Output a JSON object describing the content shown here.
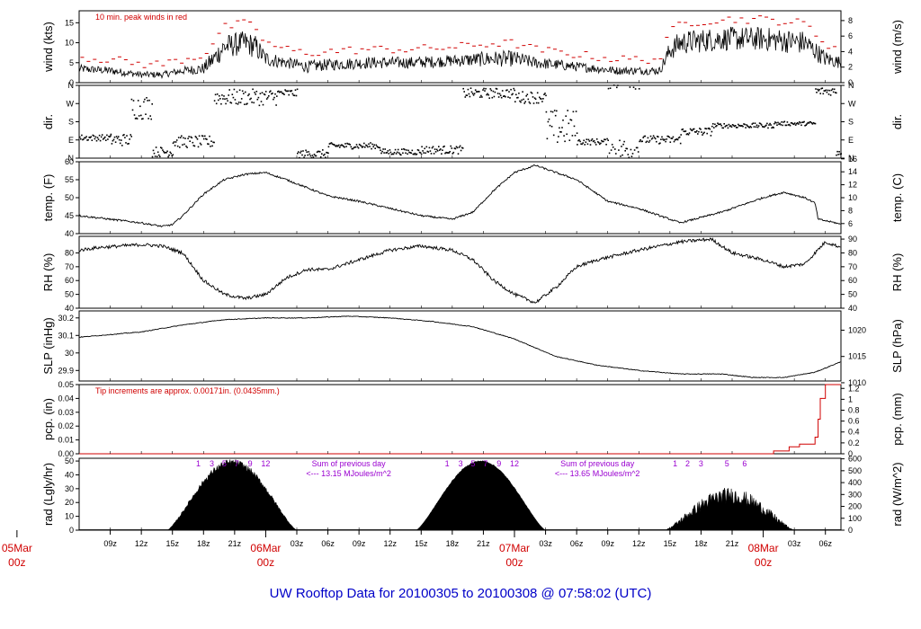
{
  "footer_title": "UW Rooftop Data for 20100305  to  20100308 @ 07:58:02  (UTC)",
  "colors": {
    "text": "#000000",
    "peak": "#d00000",
    "note": "#d00000",
    "rad_note": "#9a00d0",
    "footer": "#0000c8",
    "date": "#d00000"
  },
  "chart_data": {
    "type": "line",
    "x_unit": "hours from 2010-03-05 06z",
    "x_range": [
      0,
      73.5
    ],
    "x_ticks": [
      {
        "t": 3,
        "label": "09z"
      },
      {
        "t": 6,
        "label": "12z"
      },
      {
        "t": 9,
        "label": "15z"
      },
      {
        "t": 12,
        "label": "18z"
      },
      {
        "t": 15,
        "label": "21z"
      },
      {
        "t": 21,
        "label": "03z"
      },
      {
        "t": 24,
        "label": "06z"
      },
      {
        "t": 27,
        "label": "09z"
      },
      {
        "t": 30,
        "label": "12z"
      },
      {
        "t": 33,
        "label": "15z"
      },
      {
        "t": 36,
        "label": "18z"
      },
      {
        "t": 39,
        "label": "21z"
      },
      {
        "t": 45,
        "label": "03z"
      },
      {
        "t": 48,
        "label": "06z"
      },
      {
        "t": 51,
        "label": "09z"
      },
      {
        "t": 54,
        "label": "12z"
      },
      {
        "t": 57,
        "label": "15z"
      },
      {
        "t": 60,
        "label": "18z"
      },
      {
        "t": 63,
        "label": "21z"
      },
      {
        "t": 69,
        "label": "03z"
      },
      {
        "t": 72,
        "label": "06z"
      }
    ],
    "date_marks": [
      {
        "t": -6,
        "date": "05Mar",
        "hour": "00z"
      },
      {
        "t": 18,
        "date": "06Mar",
        "hour": "00z"
      },
      {
        "t": 42,
        "date": "07Mar",
        "hour": "00z"
      },
      {
        "t": 66,
        "date": "08Mar",
        "hour": "00z"
      }
    ],
    "panels": [
      {
        "id": "wind",
        "ylabel": "wind (kts)",
        "ylabel_right": "wind (m/s)",
        "ylim": [
          0,
          18
        ],
        "left_ticks": [
          0,
          5,
          10,
          15
        ],
        "right_ticks": [
          {
            "v": 0,
            "label": "0"
          },
          {
            "v": 3.89,
            "label": "2"
          },
          {
            "v": 7.78,
            "label": "4"
          },
          {
            "v": 11.66,
            "label": "6"
          },
          {
            "v": 15.55,
            "label": "8"
          }
        ],
        "annotation": "10 min. peak winds in red",
        "series": [
          {
            "kind": "noisy_line",
            "x": [
              0,
              3,
              6,
              8,
              10,
              12,
              13,
              14,
              16,
              17,
              18,
              20,
              22,
              24,
              28,
              32,
              36,
              40,
              42,
              44,
              48,
              52,
              56,
              57,
              58,
              62,
              66,
              70,
              72,
              73.5
            ],
            "y": [
              3.5,
              3,
              2,
              2,
              3,
              3.5,
              6,
              9,
              10,
              9,
              6,
              5,
              4,
              4.5,
              5,
              5,
              5.5,
              6,
              6,
              5,
              4,
              3,
              3,
              8,
              10,
              11,
              11,
              10,
              6,
              5
            ],
            "noise": [
              1,
              1,
              0.8,
              0.8,
              1,
              1.5,
              2.5,
              3,
              3,
              3,
              2,
              1.5,
              1.5,
              1.5,
              1.5,
              1.5,
              1.5,
              2,
              2,
              1.5,
              1.2,
              1,
              1,
              2.5,
              3,
              3,
              3,
              3,
              2,
              1.5
            ]
          },
          {
            "kind": "peak_dashes",
            "offset": 3.5
          }
        ]
      },
      {
        "id": "dir",
        "ylabel": "dir.",
        "ylabel_right": "dir.",
        "ylim": [
          0,
          360
        ],
        "left_ticks": [
          {
            "v": 0,
            "label": "N"
          },
          {
            "v": 90,
            "label": "E"
          },
          {
            "v": 180,
            "label": "S"
          },
          {
            "v": 270,
            "label": "W"
          },
          {
            "v": 360,
            "label": "N"
          }
        ],
        "segments": [
          {
            "t0": 0,
            "t1": 3,
            "center": 100,
            "spread": 15
          },
          {
            "t0": 3,
            "t1": 5,
            "center": 90,
            "spread": 30
          },
          {
            "t0": 5,
            "t1": 7,
            "center": 250,
            "spread": 60
          },
          {
            "t0": 7,
            "t1": 9,
            "center": 30,
            "spread": 25
          },
          {
            "t0": 9,
            "t1": 13,
            "center": 80,
            "spread": 30
          },
          {
            "t0": 13,
            "t1": 19,
            "center": 300,
            "spread": 40
          },
          {
            "t0": 19,
            "t1": 21,
            "center": 320,
            "spread": 20
          },
          {
            "t0": 21,
            "t1": 24,
            "center": 20,
            "spread": 20
          },
          {
            "t0": 24,
            "t1": 29,
            "center": 60,
            "spread": 15
          },
          {
            "t0": 29,
            "t1": 33,
            "center": 30,
            "spread": 15
          },
          {
            "t0": 33,
            "t1": 37,
            "center": 40,
            "spread": 20
          },
          {
            "t0": 37,
            "t1": 42,
            "center": 320,
            "spread": 25
          },
          {
            "t0": 42,
            "t1": 45,
            "center": 300,
            "spread": 30
          },
          {
            "t0": 45,
            "t1": 48,
            "center": 150,
            "spread": 90
          },
          {
            "t0": 48,
            "t1": 51,
            "center": 80,
            "spread": 15
          },
          {
            "t0": 51,
            "t1": 54,
            "center": 40,
            "spread": 60
          },
          {
            "t0": 54,
            "t1": 58,
            "center": 90,
            "spread": 20
          },
          {
            "t0": 58,
            "t1": 61,
            "center": 130,
            "spread": 20
          },
          {
            "t0": 61,
            "t1": 67,
            "center": 160,
            "spread": 12
          },
          {
            "t0": 67,
            "t1": 71,
            "center": 170,
            "spread": 10
          },
          {
            "t0": 71,
            "t1": 73,
            "center": 330,
            "spread": 20
          },
          {
            "t0": 73,
            "t1": 73.5,
            "center": 30,
            "spread": 20
          }
        ]
      },
      {
        "id": "temp",
        "ylabel": "temp. (F)",
        "ylabel_right": "temp. (C)",
        "ylim": [
          40,
          60
        ],
        "left_ticks": [
          40,
          45,
          50,
          55,
          60
        ],
        "right_ticks": [
          {
            "v": 42.8,
            "label": "6"
          },
          {
            "v": 46.4,
            "label": "8"
          },
          {
            "v": 50,
            "label": "10"
          },
          {
            "v": 53.6,
            "label": "12"
          },
          {
            "v": 57.2,
            "label": "14"
          },
          {
            "v": 60.8,
            "label": "16"
          }
        ],
        "series": [
          {
            "kind": "line",
            "noise": 0.25,
            "x": [
              0,
              3,
              6,
              8,
              9,
              10,
              12,
              14,
              16,
              18,
              20,
              24,
              27,
              30,
              33,
              36,
              38,
              40,
              42,
              44,
              48,
              51,
              54,
              57,
              58,
              62,
              66,
              68,
              70,
              71,
              71.3,
              73,
              73.5
            ],
            "y": [
              45,
              44,
              43,
              42,
              42.5,
              45,
              51,
              55,
              56.5,
              57,
              55,
              50.5,
              49,
              47,
              45,
              44,
              46,
              52,
              57,
              59,
              55,
              49,
              47,
              44,
              43,
              46,
              50,
              51.5,
              50,
              48.5,
              44,
              43,
              42.5
            ]
          }
        ]
      },
      {
        "id": "rh",
        "ylabel": "RH (%)",
        "ylabel_right": "RH (%)",
        "ylim": [
          40,
          92
        ],
        "left_ticks": [
          40,
          50,
          60,
          70,
          80
        ],
        "right_ticks": [
          40,
          50,
          60,
          70,
          80,
          90
        ],
        "series": [
          {
            "kind": "line",
            "noise": 1.2,
            "x": [
              0,
              2,
              4,
              6,
              8,
              10,
              12,
              14,
              16,
              18,
              20,
              22,
              24,
              27,
              30,
              33,
              36,
              38,
              40,
              42,
              44,
              46,
              48,
              50,
              54,
              58,
              61,
              63,
              66,
              68,
              70,
              72,
              73.5
            ],
            "y": [
              82,
              84,
              85,
              86,
              85,
              80,
              60,
              50,
              47,
              50,
              62,
              68,
              68,
              75,
              82,
              85,
              82,
              75,
              60,
              50,
              44,
              55,
              70,
              75,
              82,
              88,
              90,
              80,
              75,
              70,
              72,
              88,
              84
            ]
          }
        ]
      },
      {
        "id": "slp",
        "ylabel": "SLP (inHg)",
        "ylabel_right": "SLP (hPa)",
        "ylim": [
          29.84,
          30.24
        ],
        "left_ticks": [
          29.9,
          30.0,
          30.1,
          30.2
        ],
        "right_ticks": [
          {
            "v": 29.83,
            "label": "1010"
          },
          {
            "v": 29.98,
            "label": "1015"
          },
          {
            "v": 30.13,
            "label": "1020"
          }
        ],
        "series": [
          {
            "kind": "line",
            "noise": 0.002,
            "x": [
              0,
              6,
              10,
              14,
              18,
              22,
              26,
              30,
              34,
              38,
              42,
              46,
              50,
              54,
              58,
              62,
              65,
              68,
              71,
              73.5
            ],
            "y": [
              30.09,
              30.12,
              30.16,
              30.19,
              30.2,
              30.2,
              30.21,
              30.2,
              30.18,
              30.15,
              30.08,
              29.98,
              29.93,
              29.9,
              29.88,
              29.88,
              29.86,
              29.86,
              29.89,
              29.95
            ]
          }
        ]
      },
      {
        "id": "pcp",
        "ylabel": "pcp. (in)",
        "ylabel_right": "pcp. (mm)",
        "ylim": [
          0,
          0.05
        ],
        "left_ticks": [
          {
            "v": 0,
            "label": "0.00"
          },
          {
            "v": 0.01,
            "label": "0.01"
          },
          {
            "v": 0.02,
            "label": "0.02"
          },
          {
            "v": 0.03,
            "label": "0.03"
          },
          {
            "v": 0.04,
            "label": "0.04"
          },
          {
            "v": 0.05,
            "label": "0.05"
          }
        ],
        "right_ticks": [
          {
            "v": 0,
            "label": "0"
          },
          {
            "v": 0.00787,
            "label": "0.2"
          },
          {
            "v": 0.01575,
            "label": "0.4"
          },
          {
            "v": 0.02362,
            "label": "0.6"
          },
          {
            "v": 0.0315,
            "label": "0.8"
          },
          {
            "v": 0.03937,
            "label": "1"
          },
          {
            "v": 0.04724,
            "label": "1.2"
          }
        ],
        "annotation": "Tip increments are approx. 0.00171in. (0.0435mm.)",
        "series": [
          {
            "kind": "step",
            "x": [
              0,
              66,
              67,
              68.5,
              69.5,
              71,
              71.3,
              71.5,
              72,
              73.5
            ],
            "y": [
              0,
              0,
              0.002,
              0.005,
              0.007,
              0.012,
              0.025,
              0.04,
              0.05,
              0.05
            ]
          }
        ]
      },
      {
        "id": "rad",
        "ylabel": "rad (Lgly/hr)",
        "ylabel_right": "rad (W/m^2)",
        "ylim": [
          0,
          52
        ],
        "left_ticks": [
          0,
          10,
          20,
          30,
          40,
          50
        ],
        "right_ticks": [
          {
            "v": 0,
            "label": "0"
          },
          {
            "v": 8.6,
            "label": "100"
          },
          {
            "v": 17.2,
            "label": "200"
          },
          {
            "v": 25.8,
            "label": "300"
          },
          {
            "v": 34.4,
            "label": "400"
          },
          {
            "v": 43,
            "label": "500"
          },
          {
            "v": 51.6,
            "label": "600"
          }
        ],
        "days": [
          {
            "rise": 8.5,
            "set": 21,
            "peak": 49,
            "noise": 2.5
          },
          {
            "rise": 32.5,
            "set": 45,
            "peak": 50,
            "noise": 0.5
          },
          {
            "rise": 56.5,
            "set": 69,
            "peak": 25,
            "noise": 6
          }
        ],
        "markers": [
          {
            "hours": [
              {
                "t": 11.5,
                "label": "1"
              },
              {
                "t": 12.8,
                "label": "3"
              },
              {
                "t": 14,
                "label": "5"
              },
              {
                "t": 15.2,
                "label": "7"
              },
              {
                "t": 16.5,
                "label": "9"
              },
              {
                "t": 18,
                "label": "12"
              }
            ]
          },
          {
            "hours": [
              {
                "t": 35.5,
                "label": "1"
              },
              {
                "t": 36.8,
                "label": "3"
              },
              {
                "t": 38,
                "label": "5"
              },
              {
                "t": 39.2,
                "label": "7"
              },
              {
                "t": 40.5,
                "label": "9"
              },
              {
                "t": 42,
                "label": "12"
              }
            ]
          },
          {
            "hours": [
              {
                "t": 57.5,
                "label": "1"
              },
              {
                "t": 58.7,
                "label": "2"
              },
              {
                "t": 60,
                "label": "3"
              },
              {
                "t": 62.5,
                "label": "5"
              },
              {
                "t": 64.2,
                "label": "6"
              }
            ]
          }
        ],
        "sums": [
          {
            "t": 26,
            "line1": "Sum of previous day",
            "line2": "<--- 13.15 MJoules/m^2"
          },
          {
            "t": 50,
            "line1": "Sum of previous day",
            "line2": "<--- 13.65 MJoules/m^2"
          }
        ]
      }
    ]
  }
}
